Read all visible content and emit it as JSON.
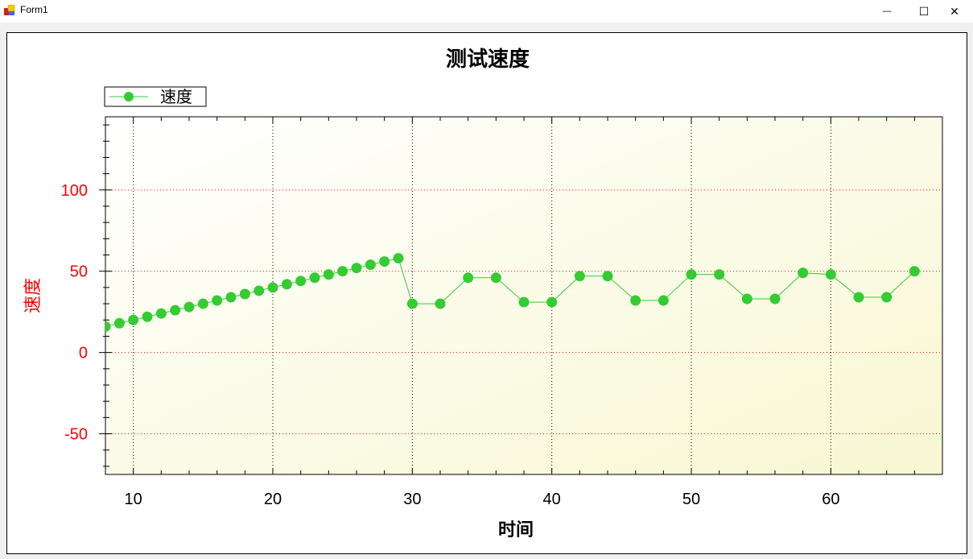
{
  "window": {
    "title": "Form1",
    "controls": {
      "minimize": "—",
      "maximize": "☐",
      "close": "✕"
    }
  },
  "colors": {
    "series": "#33cc33",
    "axis_y_label": "#ff0000",
    "grid_y": "#ff0000",
    "grid_x": "#000000",
    "plot_bg_start": "#ffffff",
    "plot_bg_end": "#f8f7d2"
  },
  "chart_data": {
    "type": "line",
    "title": "测试速度",
    "xlabel": "时间",
    "ylabel": "速度",
    "xlim": [
      8,
      68
    ],
    "ylim": [
      -75,
      145
    ],
    "x_ticks": [
      10,
      20,
      30,
      40,
      50,
      60
    ],
    "y_ticks": [
      -50,
      0,
      50,
      100
    ],
    "grid": true,
    "legend": {
      "position": "top-left",
      "entries": [
        "速度"
      ]
    },
    "series": [
      {
        "name": "速度",
        "x": [
          8,
          9,
          10,
          11,
          12,
          13,
          14,
          15,
          16,
          17,
          18,
          19,
          20,
          21,
          22,
          23,
          24,
          25,
          26,
          27,
          28,
          29,
          30,
          32,
          34,
          36,
          38,
          40,
          42,
          44,
          46,
          48,
          50,
          52,
          54,
          56,
          58,
          60,
          62,
          64,
          66
        ],
        "values": [
          16,
          18,
          20,
          22,
          24,
          26,
          28,
          30,
          32,
          34,
          36,
          38,
          40,
          42,
          44,
          46,
          48,
          50,
          52,
          54,
          56,
          58,
          30,
          30,
          46,
          46,
          31,
          31,
          47,
          47,
          32,
          32,
          48,
          48,
          33,
          33,
          49,
          48,
          34,
          34,
          50
        ]
      }
    ]
  }
}
